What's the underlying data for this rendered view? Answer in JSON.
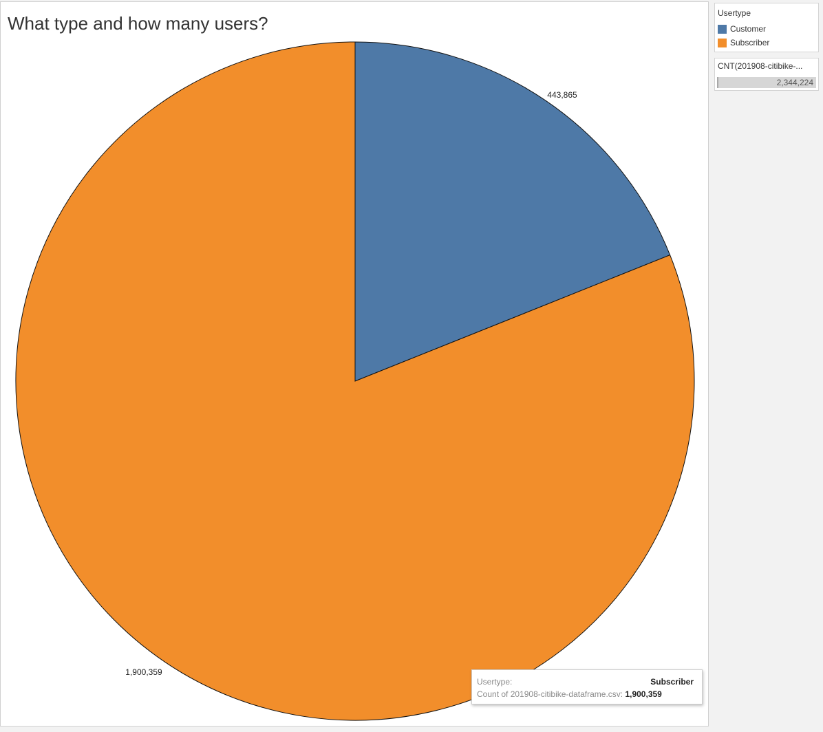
{
  "chart_data": {
    "type": "pie",
    "title": "What type and how many users?",
    "categories": [
      "Customer",
      "Subscriber"
    ],
    "values": [
      443865,
      1900359
    ],
    "data_labels": [
      "443,865",
      "1,900,359"
    ],
    "colors": [
      "#4e79a7",
      "#f28e2b"
    ],
    "start_angle_deg": 0,
    "direction": "clockwise",
    "legend_position": "right"
  },
  "legend": {
    "title": "Usertype",
    "items": [
      {
        "label": "Customer",
        "color": "#4e79a7"
      },
      {
        "label": "Subscriber",
        "color": "#f28e2b"
      }
    ]
  },
  "size_legend": {
    "title": "CNT(201908-citibike-...",
    "value": "2,344,224"
  },
  "tooltip": {
    "row1_key": "Usertype:",
    "row1_value": "Subscriber",
    "row2_key": "Count of 201908-citibike-dataframe.csv:",
    "row2_value": "1,900,359"
  }
}
